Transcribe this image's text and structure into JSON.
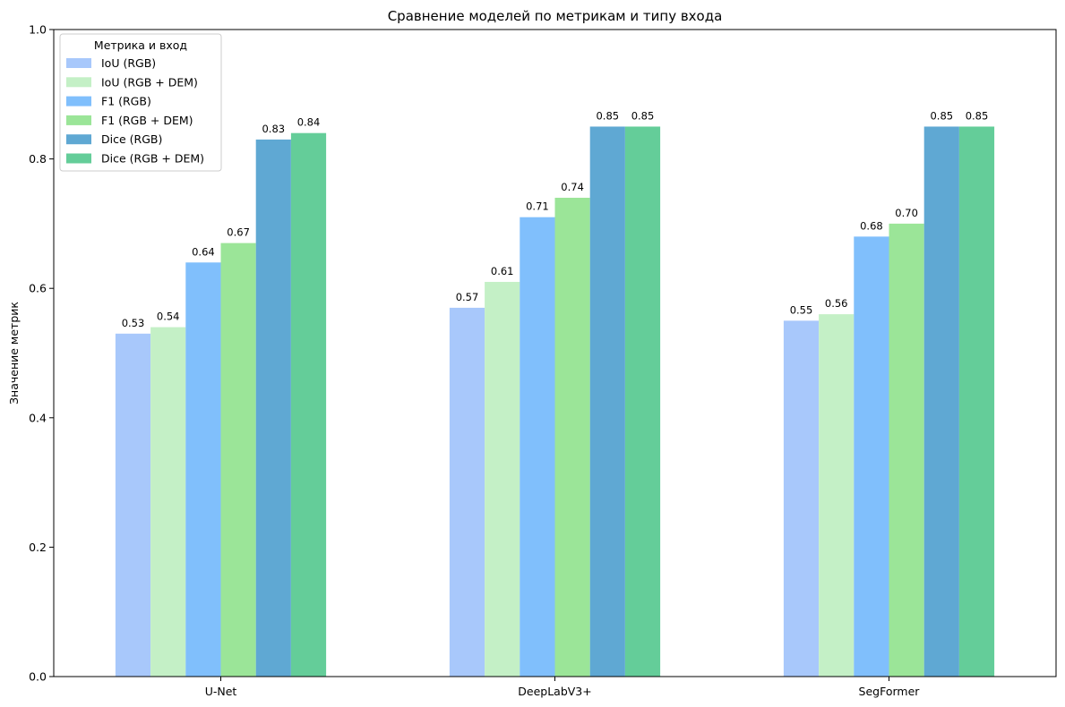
{
  "chart_data": {
    "type": "bar",
    "title": "Сравнение моделей по метрикам и типу входа",
    "xlabel": "",
    "ylabel": "Значение метрик",
    "ylim": [
      0,
      1.0
    ],
    "yticks": [
      "0.0",
      "0.2",
      "0.4",
      "0.6",
      "0.8",
      "1.0"
    ],
    "categories": [
      "U-Net",
      "DeepLabV3+",
      "SegFormer"
    ],
    "legend_title": "Метрика и вход",
    "legend_position": "top-left",
    "grid": false,
    "series": [
      {
        "name": "IoU (RGB)",
        "color": "#a8c8fb",
        "values": [
          0.53,
          0.57,
          0.55
        ],
        "labels": [
          "0.53",
          "0.57",
          "0.55"
        ]
      },
      {
        "name": "IoU (RGB + DEM)",
        "color": "#c4f0c6",
        "values": [
          0.54,
          0.61,
          0.56
        ],
        "labels": [
          "0.54",
          "0.61",
          "0.56"
        ]
      },
      {
        "name": "F1 (RGB)",
        "color": "#80bffc",
        "values": [
          0.64,
          0.71,
          0.68
        ],
        "labels": [
          "0.64",
          "0.71",
          "0.68"
        ]
      },
      {
        "name": "F1 (RGB + DEM)",
        "color": "#9be598",
        "values": [
          0.67,
          0.74,
          0.7
        ],
        "labels": [
          "0.67",
          "0.74",
          "0.70"
        ]
      },
      {
        "name": "Dice (RGB)",
        "color": "#5fa8d3",
        "values": [
          0.83,
          0.85,
          0.85
        ],
        "labels": [
          "0.83",
          "0.85",
          "0.85"
        ]
      },
      {
        "name": "Dice (RGB + DEM)",
        "color": "#64cd99",
        "values": [
          0.84,
          0.85,
          0.85
        ],
        "labels": [
          "0.84",
          "0.85",
          "0.85"
        ]
      }
    ]
  }
}
